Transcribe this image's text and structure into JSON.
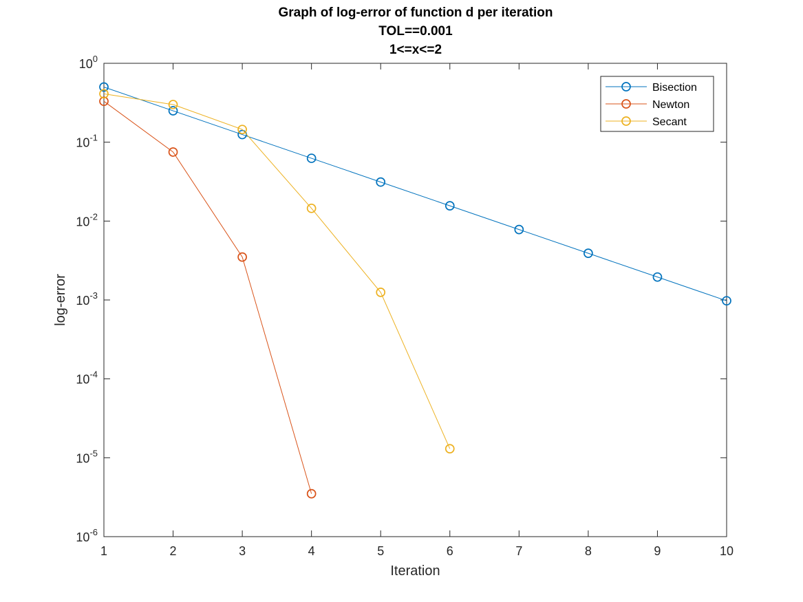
{
  "chart_data": {
    "type": "line",
    "title": [
      "Graph of log-error of function d per iteration",
      "TOL==0.001",
      "1<=x<=2"
    ],
    "xlabel": "Iteration",
    "ylabel": "log-error",
    "xlim": [
      1,
      10
    ],
    "ylim": [
      1e-06,
      1
    ],
    "yscale": "log",
    "grid": false,
    "marker": "circle",
    "x_ticks": [
      {
        "value": 1,
        "label": "1"
      },
      {
        "value": 2,
        "label": "2"
      },
      {
        "value": 3,
        "label": "3"
      },
      {
        "value": 4,
        "label": "4"
      },
      {
        "value": 5,
        "label": "5"
      },
      {
        "value": 6,
        "label": "6"
      },
      {
        "value": 7,
        "label": "7"
      },
      {
        "value": 8,
        "label": "8"
      },
      {
        "value": 9,
        "label": "9"
      },
      {
        "value": 10,
        "label": "10"
      }
    ],
    "y_ticks": [
      {
        "value": 1,
        "base": "10",
        "exp": "0"
      },
      {
        "value": 0.1,
        "base": "10",
        "exp": "-1"
      },
      {
        "value": 0.01,
        "base": "10",
        "exp": "-2"
      },
      {
        "value": 0.001,
        "base": "10",
        "exp": "-3"
      },
      {
        "value": 0.0001,
        "base": "10",
        "exp": "-4"
      },
      {
        "value": 1e-05,
        "base": "10",
        "exp": "-5"
      },
      {
        "value": 1e-06,
        "base": "10",
        "exp": "-6"
      }
    ],
    "legend_position": "top-right",
    "series": [
      {
        "name": "Bisection",
        "color": "#0072BD",
        "x": [
          1,
          2,
          3,
          4,
          5,
          6,
          7,
          8,
          9,
          10
        ],
        "y": [
          0.5,
          0.25,
          0.125,
          0.0625,
          0.03125,
          0.015625,
          0.0078125,
          0.00390625,
          0.001953125,
          0.0009765625
        ]
      },
      {
        "name": "Newton",
        "color": "#D95319",
        "x": [
          1,
          2,
          3,
          4
        ],
        "y": [
          0.33,
          0.075,
          0.0035,
          3.5e-06
        ]
      },
      {
        "name": "Secant",
        "color": "#EDB120",
        "x": [
          1,
          2,
          3,
          4,
          5,
          6
        ],
        "y": [
          0.41,
          0.3,
          0.145,
          0.0145,
          0.00125,
          1.3e-05
        ]
      }
    ]
  }
}
